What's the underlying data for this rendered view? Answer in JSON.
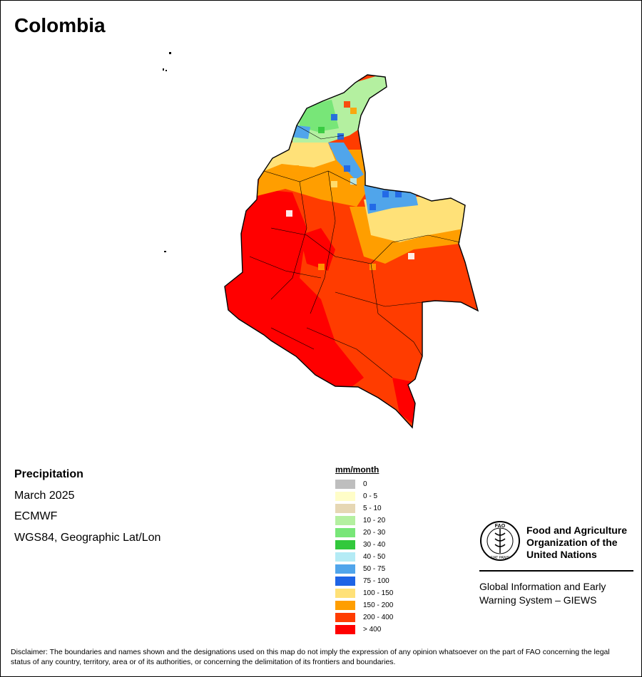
{
  "title": "Colombia",
  "info": {
    "variable": "Precipitation",
    "period": "March 2025",
    "source": "ECMWF",
    "projection": "WGS84, Geographic Lat/Lon"
  },
  "legend": {
    "title": "mm/month",
    "classes": [
      {
        "label": "0",
        "color": "#bebebe"
      },
      {
        "label": "0 - 5",
        "color": "#fffdc8"
      },
      {
        "label": "5 - 10",
        "color": "#e6d7b4"
      },
      {
        "label": "10 - 20",
        "color": "#b4f0a0"
      },
      {
        "label": "20 - 30",
        "color": "#78e678"
      },
      {
        "label": "30 - 40",
        "color": "#32c83c"
      },
      {
        "label": "40 - 50",
        "color": "#b4ebf5"
      },
      {
        "label": "50 - 75",
        "color": "#50a5eb"
      },
      {
        "label": "75 - 100",
        "color": "#1e64e6"
      },
      {
        "label": "100 - 150",
        "color": "#ffe178"
      },
      {
        "label": "150 - 200",
        "color": "#ff9e00"
      },
      {
        "label": "200 - 400",
        "color": "#ff3c00"
      },
      {
        "label": "> 400",
        "color": "#ff0000"
      }
    ]
  },
  "fao": {
    "name_line1": "Food and Agriculture",
    "name_line2": "Organization of the",
    "name_line3": "United Nations",
    "emblem_text": "FAO",
    "motto": "FIAT PANIS",
    "giews_line1": "Global Information and Early",
    "giews_line2": "Warning System – GIEWS"
  },
  "disclaimer": "Disclaimer: The boundaries and names shown and the designations used on this map do not imply the expression of any opinion whatsoever on the part of FAO concerning the legal status of any country, territory, area or of its authorities, or concerning the delimitation of its frontiers and boundaries."
}
